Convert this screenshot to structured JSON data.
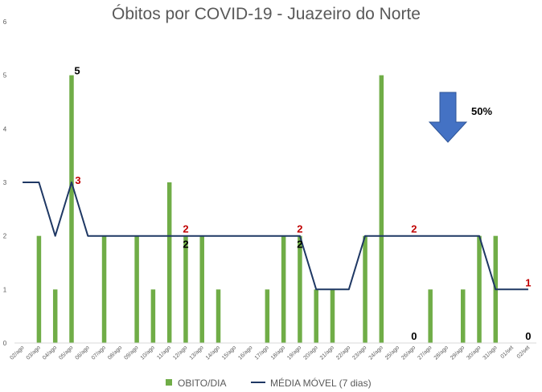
{
  "chart_data": {
    "type": "bar",
    "title": "Óbitos por COVID-19 - Juazeiro do Norte",
    "categories": [
      "02/ago",
      "03/ago",
      "04/ago",
      "05/ago",
      "06/ago",
      "07/ago",
      "08/ago",
      "09/ago",
      "10/ago",
      "11/ago",
      "12/ago",
      "13/ago",
      "14/ago",
      "15/ago",
      "16/ago",
      "17/ago",
      "18/ago",
      "19/ago",
      "20/ago",
      "21/ago",
      "22/ago",
      "23/ago",
      "24/ago",
      "25/ago",
      "26/ago",
      "27/ago",
      "28/ago",
      "29/ago",
      "30/ago",
      "31/ago",
      "01/set",
      "02/set"
    ],
    "ylim": [
      0,
      6
    ],
    "yticks": [
      "0",
      "1",
      "2",
      "3",
      "4",
      "5",
      "6"
    ],
    "series": [
      {
        "name": "OBITO/DIA",
        "type": "bar",
        "color": "#70AD47",
        "values": [
          0,
          2,
          1,
          5,
          0,
          2,
          0,
          2,
          1,
          3,
          2,
          2,
          1,
          0,
          0,
          1,
          2,
          2,
          1,
          1,
          0,
          2,
          5,
          0,
          0,
          1,
          0,
          1,
          2,
          2,
          0,
          0
        ]
      },
      {
        "name": "MÉDIA MÓVEL (7 dias)",
        "type": "line",
        "color": "#1F3864",
        "values": [
          3,
          3,
          2,
          3,
          2,
          2,
          2,
          2,
          2,
          2,
          2,
          2,
          2,
          2,
          2,
          2,
          2,
          2,
          1,
          1,
          1,
          2,
          2,
          2,
          2,
          2,
          2,
          2,
          2,
          1,
          1,
          1
        ]
      }
    ],
    "annotations": [
      {
        "text": "5",
        "index": 3,
        "y": 5,
        "color": "#000000",
        "place": "above-right"
      },
      {
        "text": "3",
        "index": 3,
        "y": 3,
        "color": "#C00000",
        "place": "right"
      },
      {
        "text": "2",
        "index": 10,
        "y": 2,
        "color": "#C00000",
        "place": "above"
      },
      {
        "text": "2",
        "index": 10,
        "y": 2,
        "color": "#000000",
        "place": "below"
      },
      {
        "text": "2",
        "index": 17,
        "y": 2,
        "color": "#C00000",
        "place": "above"
      },
      {
        "text": "2",
        "index": 17,
        "y": 2,
        "color": "#000000",
        "place": "below"
      },
      {
        "text": "2",
        "index": 24,
        "y": 2,
        "color": "#C00000",
        "place": "above"
      },
      {
        "text": "0",
        "index": 24,
        "y": 0,
        "color": "#000000",
        "place": "above"
      },
      {
        "text": "1",
        "index": 31,
        "y": 1,
        "color": "#C00000",
        "place": "above"
      },
      {
        "text": "0",
        "index": 31,
        "y": 0,
        "color": "#000000",
        "place": "above"
      }
    ],
    "callout": {
      "text": "50%",
      "icon": "down-arrow-icon",
      "arrow_color": "#4472C4"
    },
    "legend_position": "bottom",
    "grid": false
  }
}
